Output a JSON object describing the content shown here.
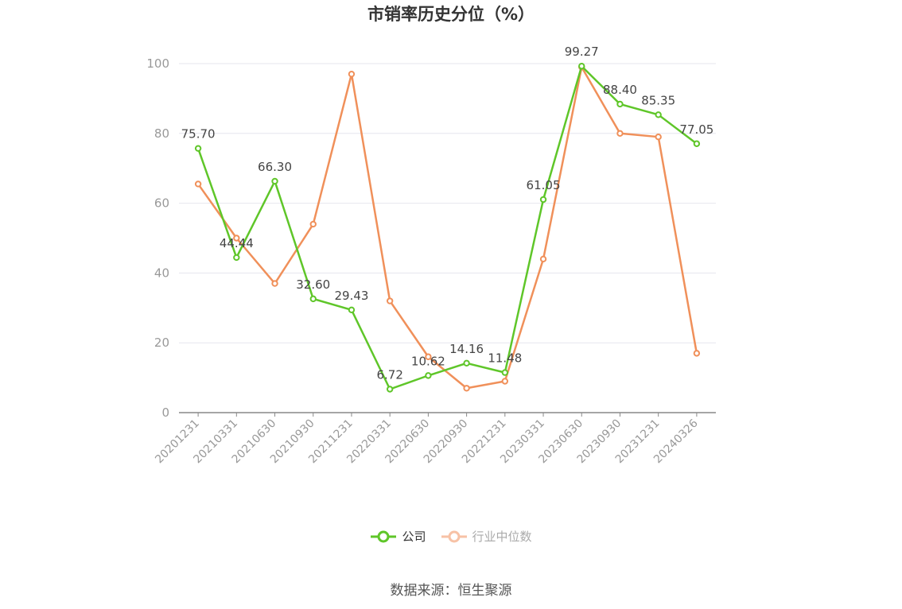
{
  "chart_data": {
    "type": "line",
    "title": "市销率历史分位（%）",
    "categories": [
      "20201231",
      "20210331",
      "20210630",
      "20210930",
      "20211231",
      "20220331",
      "20220630",
      "20220930",
      "20221231",
      "20230331",
      "20230630",
      "20230930",
      "20231231",
      "20240326"
    ],
    "series": [
      {
        "name": "公司",
        "color": "#5fc629",
        "values": [
          75.7,
          44.44,
          66.3,
          32.6,
          29.43,
          6.72,
          10.62,
          14.16,
          11.48,
          61.05,
          99.27,
          88.4,
          85.35,
          77.05
        ],
        "labels": [
          "75.70",
          "44.44",
          "66.30",
          "32.60",
          "29.43",
          "6.72",
          "10.62",
          "14.16",
          "11.48",
          "61.05",
          "99.27",
          "88.40",
          "85.35",
          "77.05"
        ]
      },
      {
        "name": "行业中位数",
        "color": "#f0905a",
        "values": [
          65.5,
          50,
          37,
          54,
          97,
          32,
          16,
          7,
          9,
          44,
          99,
          80,
          79,
          17
        ]
      }
    ],
    "ylim": [
      0,
      100
    ],
    "yticks": [
      0,
      20,
      40,
      60,
      80,
      100
    ],
    "grid": true,
    "legend_position": "bottom-center"
  },
  "source": "数据来源：恒生聚源"
}
